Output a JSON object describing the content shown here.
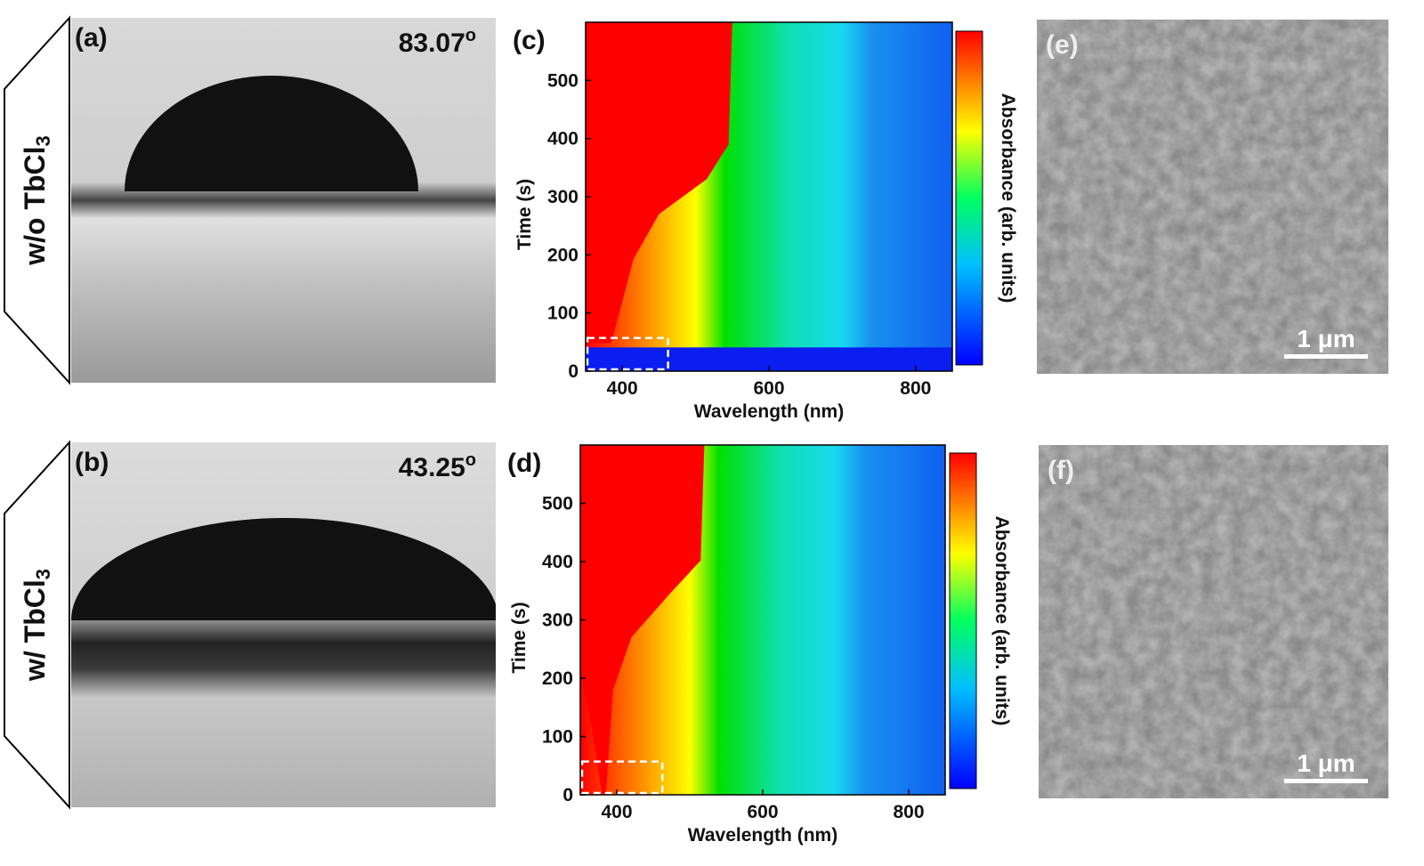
{
  "photos": [
    {
      "panel_label": "(a)",
      "angle": "83.07",
      "angle_sup": "o",
      "sample": "w/o TbCl",
      "sample_sub": "3"
    },
    {
      "panel_label": "(b)",
      "angle": "43.25",
      "angle_sup": "o",
      "sample": "w/ TbCl",
      "sample_sub": "3"
    }
  ],
  "chart_data": [
    {
      "type": "heatmap",
      "panel_label": "(c)",
      "xlabel": "Wavelength (nm)",
      "ylabel": "Time (s)",
      "colorbar_label": "Absorbance (arb. units)",
      "xlim": [
        350,
        850
      ],
      "ylim": [
        0,
        600
      ],
      "xticks": [
        400,
        600,
        800
      ],
      "yticks": [
        0,
        100,
        200,
        300,
        400,
        500
      ]
    },
    {
      "type": "heatmap",
      "panel_label": "(d)",
      "xlabel": "Wavelength (nm)",
      "ylabel": "Time (s)",
      "colorbar_label": "Absorbance (arb. units)",
      "xlim": [
        350,
        850
      ],
      "ylim": [
        0,
        600
      ],
      "xticks": [
        400,
        600,
        800
      ],
      "yticks": [
        0,
        100,
        200,
        300,
        400,
        500
      ]
    }
  ],
  "sem": [
    {
      "panel_label": "(e)",
      "scale_bar": "1 μm"
    },
    {
      "panel_label": "(f)",
      "scale_bar": "1 μm"
    }
  ]
}
